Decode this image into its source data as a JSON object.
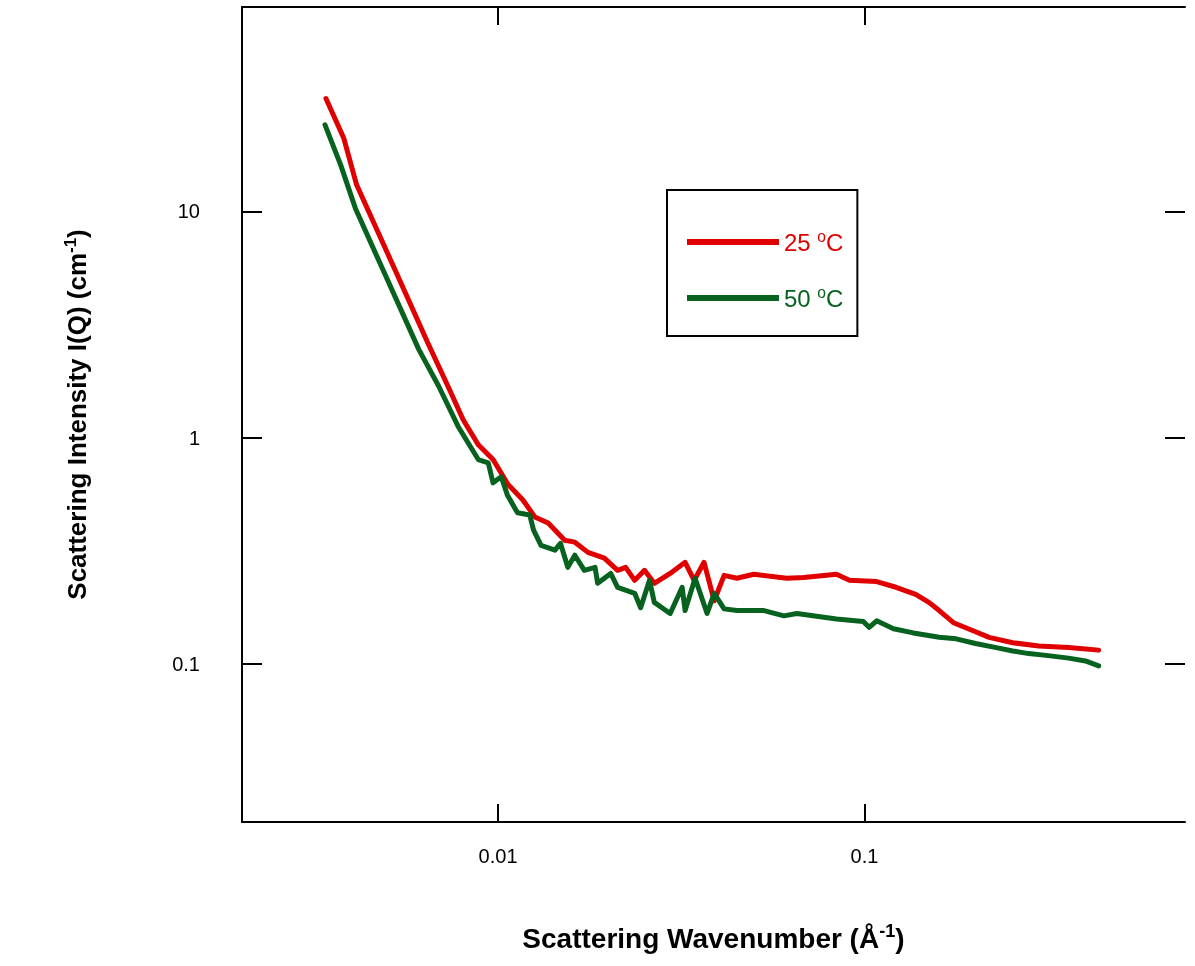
{
  "chart_data": {
    "type": "line",
    "xlabel": "Scattering Wavenumber (Å$^{-1}$)",
    "ylabel": "Scattering Intensity I(Q) (cm$^{-1}$)",
    "log": "xy",
    "xlim": [
      0.002,
      0.75
    ],
    "xticks": [
      0.01,
      0.1
    ],
    "ylim": [
      0.02,
      80
    ],
    "yticks": [
      0.1,
      1,
      10
    ],
    "grid": false,
    "legend": "top right",
    "marker": "none",
    "line_style": "solid",
    "series": [
      {
        "name": "25 $^{o}$C",
        "color": "#e00000",
        "x": [
          0.00339,
          0.00379,
          0.00411,
          0.00472,
          0.00552,
          0.00645,
          0.00732,
          0.00803,
          0.00883,
          0.00969,
          0.01065,
          0.01169,
          0.0126,
          0.0137,
          0.0152,
          0.0162,
          0.0176,
          0.0195,
          0.0212,
          0.0223,
          0.0236,
          0.0251,
          0.0267,
          0.0295,
          0.0324,
          0.0343,
          0.0365,
          0.0389,
          0.0414,
          0.0449,
          0.0499,
          0.0614,
          0.0682,
          0.0839,
          0.091,
          0.108,
          0.122,
          0.138,
          0.15,
          0.16,
          0.175,
          0.198,
          0.219,
          0.254,
          0.299,
          0.361,
          0.436
        ],
        "values": [
          31.5,
          21.1,
          13.1,
          7.98,
          4.55,
          2.59,
          1.67,
          1.2,
          0.93,
          0.8,
          0.62,
          0.53,
          0.446,
          0.419,
          0.352,
          0.345,
          0.311,
          0.293,
          0.259,
          0.267,
          0.234,
          0.259,
          0.227,
          0.251,
          0.281,
          0.234,
          0.281,
          0.19,
          0.246,
          0.239,
          0.249,
          0.239,
          0.241,
          0.249,
          0.234,
          0.231,
          0.218,
          0.203,
          0.187,
          0.172,
          0.152,
          0.14,
          0.131,
          0.124,
          0.12,
          0.118,
          0.115
        ]
      },
      {
        "name": "50 $^{o}$C",
        "color": "#06621e",
        "x": [
          0.00337,
          0.00372,
          0.00408,
          0.00493,
          0.00607,
          0.00688,
          0.00778,
          0.00883,
          0.0094,
          0.00969,
          0.0102,
          0.0106,
          0.0113,
          0.0122,
          0.0125,
          0.0131,
          0.0143,
          0.0148,
          0.0155,
          0.0162,
          0.0172,
          0.0184,
          0.0187,
          0.0203,
          0.0212,
          0.0236,
          0.0245,
          0.0259,
          0.0267,
          0.0295,
          0.0318,
          0.0324,
          0.0345,
          0.0372,
          0.0389,
          0.0414,
          0.0449,
          0.0532,
          0.0603,
          0.0654,
          0.0839,
          0.0993,
          0.103,
          0.108,
          0.12,
          0.136,
          0.16,
          0.178,
          0.201,
          0.229,
          0.254,
          0.281,
          0.313,
          0.361,
          0.401,
          0.436
        ],
        "values": [
          24.1,
          16.0,
          10.3,
          5.2,
          2.46,
          1.69,
          1.12,
          0.8,
          0.774,
          0.631,
          0.671,
          0.558,
          0.465,
          0.455,
          0.39,
          0.334,
          0.318,
          0.341,
          0.267,
          0.302,
          0.259,
          0.267,
          0.227,
          0.251,
          0.218,
          0.205,
          0.177,
          0.234,
          0.187,
          0.167,
          0.218,
          0.172,
          0.239,
          0.167,
          0.205,
          0.175,
          0.172,
          0.172,
          0.163,
          0.167,
          0.158,
          0.154,
          0.145,
          0.155,
          0.143,
          0.137,
          0.131,
          0.129,
          0.123,
          0.118,
          0.114,
          0.111,
          0.109,
          0.106,
          0.103,
          0.098
        ]
      }
    ]
  }
}
